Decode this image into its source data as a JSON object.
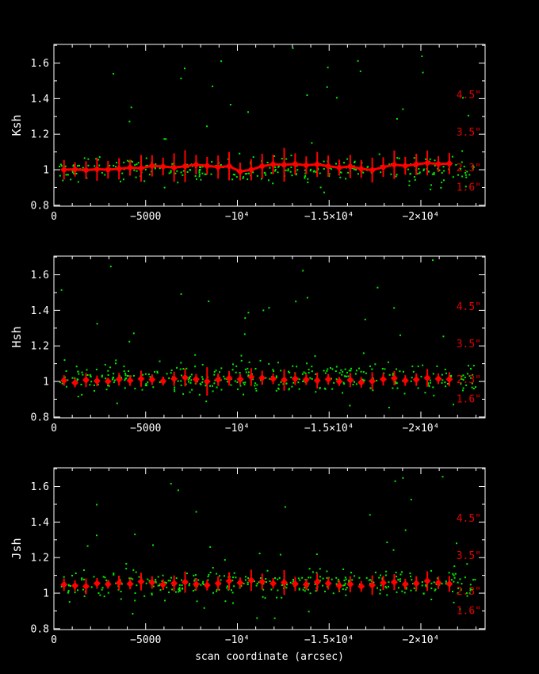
{
  "figure": {
    "background": "#000000",
    "axis_color": "#ffffff",
    "scatter_color": "#00ee00",
    "series_color": "#ff0000",
    "annotation_color": "#e60000",
    "xlabel": "scan coordinate (arcsec)",
    "xlim": [
      0,
      -23500
    ],
    "ylim": [
      0.795,
      1.705
    ],
    "x_ticks": [
      {
        "value": 0,
        "label": "0"
      },
      {
        "value": -5000,
        "label": "−5000"
      },
      {
        "value": -10000,
        "label": "−10⁴"
      },
      {
        "value": -15000,
        "label": "−1.5×10⁴"
      },
      {
        "value": -20000,
        "label": "−2×10⁴"
      }
    ],
    "x_minor_step": 1000,
    "y_ticks": [
      {
        "value": 0.8,
        "label": "0.8"
      },
      {
        "value": 1.0,
        "label": "1"
      },
      {
        "value": 1.2,
        "label": "1.2"
      },
      {
        "value": 1.4,
        "label": "1.4"
      },
      {
        "value": 1.6,
        "label": "1.6"
      }
    ],
    "y_minor_ticks": [
      0.9,
      1.1,
      1.3,
      1.5,
      1.7
    ],
    "beam_labels": [
      {
        "label": "4.5\"",
        "value": 1.42
      },
      {
        "label": "3.5\"",
        "value": 1.21
      },
      {
        "label": "2.3\"",
        "value": 1.01
      },
      {
        "label": "1.6\"",
        "value": 0.9
      }
    ],
    "series_x": [
      -550,
      -1150,
      -1750,
      -2350,
      -2950,
      -3550,
      -4150,
      -4750,
      -5350,
      -5950,
      -6550,
      -7150,
      -7750,
      -8350,
      -8950,
      -9550,
      -10150,
      -10750,
      -11350,
      -11950,
      -12550,
      -13150,
      -13750,
      -14350,
      -14950,
      -15550,
      -16150,
      -16750,
      -17350,
      -17950,
      -18550,
      -19150,
      -19750,
      -20350,
      -20950,
      -21550
    ]
  },
  "chart_data": [
    {
      "type": "scatter",
      "panel": "top",
      "ylabel": "Ksh",
      "connected": true,
      "red_series": {
        "y": [
          1.0,
          1.002,
          0.998,
          1.003,
          1.0,
          1.005,
          1.012,
          1.008,
          1.022,
          1.018,
          1.012,
          1.02,
          1.028,
          1.022,
          1.015,
          1.02,
          0.99,
          1.0,
          1.02,
          1.03,
          1.028,
          1.032,
          1.025,
          1.03,
          1.02,
          1.012,
          1.018,
          1.005,
          0.998,
          1.015,
          1.028,
          1.022,
          1.03,
          1.038,
          1.032,
          1.035
        ],
        "yerr": [
          0.055,
          0.04,
          0.05,
          0.065,
          0.05,
          0.06,
          0.045,
          0.075,
          0.06,
          0.05,
          0.08,
          0.09,
          0.055,
          0.05,
          0.065,
          0.08,
          0.05,
          0.06,
          0.07,
          0.055,
          0.095,
          0.06,
          0.05,
          0.07,
          0.06,
          0.045,
          0.065,
          0.05,
          0.07,
          0.055,
          0.08,
          0.05,
          0.06,
          0.07,
          0.045,
          0.06
        ]
      },
      "green_scatter": {
        "seed": 42,
        "count_band": 300,
        "band_center": 1.005,
        "band_sigma": 0.035,
        "count_outliers": 26,
        "outlier_range": [
          1.14,
          1.69
        ],
        "count_low": 6,
        "low_range": [
          0.85,
          0.93
        ],
        "x_range": [
          -300,
          -23000
        ]
      }
    },
    {
      "type": "scatter",
      "panel": "middle",
      "ylabel": "Hsh",
      "connected": false,
      "red_series": {
        "y": [
          1.005,
          0.992,
          1.008,
          1.003,
          1.0,
          1.012,
          1.005,
          1.015,
          1.01,
          1.002,
          1.015,
          1.022,
          1.012,
          1.0,
          1.01,
          1.018,
          1.012,
          1.025,
          1.02,
          1.015,
          1.008,
          1.015,
          1.01,
          1.005,
          1.012,
          1.0,
          1.008,
          0.995,
          1.002,
          1.012,
          1.018,
          1.005,
          1.01,
          1.02,
          1.015,
          1.012
        ],
        "yerr": [
          0.03,
          0.025,
          0.04,
          0.03,
          0.02,
          0.035,
          0.03,
          0.045,
          0.03,
          0.025,
          0.04,
          0.05,
          0.03,
          0.08,
          0.035,
          0.04,
          0.03,
          0.05,
          0.04,
          0.03,
          0.06,
          0.035,
          0.03,
          0.045,
          0.03,
          0.025,
          0.04,
          0.03,
          0.05,
          0.035,
          0.04,
          0.03,
          0.035,
          0.05,
          0.03,
          0.04
        ]
      },
      "green_scatter": {
        "seed": 77,
        "count_band": 370,
        "band_center": 1.02,
        "band_sigma": 0.04,
        "count_outliers": 24,
        "outlier_range": [
          1.14,
          1.69
        ],
        "count_low": 8,
        "low_range": [
          0.85,
          0.93
        ],
        "x_range": [
          -300,
          -23000
        ]
      }
    },
    {
      "type": "scatter",
      "panel": "bottom",
      "ylabel": "Jsh",
      "connected": false,
      "red_series": {
        "y": [
          1.048,
          1.042,
          1.038,
          1.055,
          1.05,
          1.058,
          1.052,
          1.065,
          1.06,
          1.048,
          1.055,
          1.062,
          1.05,
          1.045,
          1.055,
          1.068,
          1.058,
          1.072,
          1.065,
          1.055,
          1.06,
          1.052,
          1.048,
          1.062,
          1.055,
          1.042,
          1.05,
          1.038,
          1.045,
          1.058,
          1.062,
          1.05,
          1.055,
          1.068,
          1.058,
          1.052
        ],
        "yerr": [
          0.035,
          0.03,
          0.045,
          0.03,
          0.025,
          0.04,
          0.03,
          0.05,
          0.035,
          0.03,
          0.045,
          0.06,
          0.035,
          0.03,
          0.04,
          0.05,
          0.03,
          0.06,
          0.045,
          0.03,
          0.07,
          0.04,
          0.03,
          0.05,
          0.035,
          0.03,
          0.045,
          0.03,
          0.055,
          0.04,
          0.045,
          0.03,
          0.04,
          0.055,
          0.035,
          0.045
        ]
      },
      "green_scatter": {
        "seed": 123,
        "count_band": 370,
        "band_center": 1.05,
        "band_sigma": 0.04,
        "count_outliers": 24,
        "outlier_range": [
          1.14,
          1.69
        ],
        "count_low": 6,
        "low_range": [
          0.85,
          0.93
        ],
        "x_range": [
          -300,
          -23000
        ]
      }
    }
  ]
}
